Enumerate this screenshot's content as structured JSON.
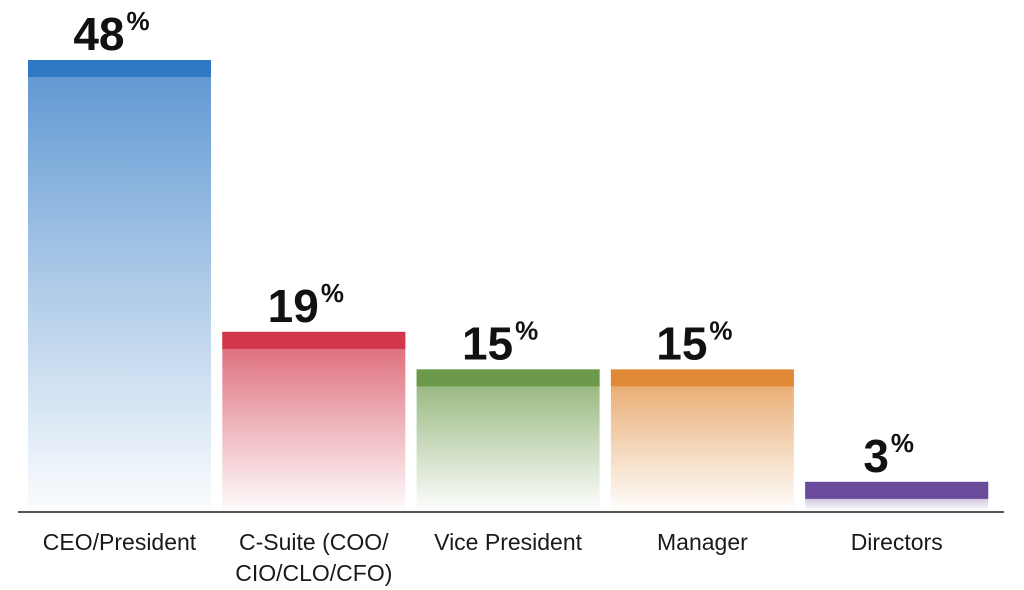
{
  "chart_data": {
    "type": "bar",
    "categories": [
      [
        "CEO/President"
      ],
      [
        "C-Suite (COO/",
        "CIO/CLO/CFO)"
      ],
      [
        "Vice President"
      ],
      [
        "Manager"
      ],
      [
        "Directors"
      ]
    ],
    "values": [
      48,
      19,
      15,
      15,
      3
    ],
    "value_suffix": "%",
    "colors": [
      "#2e78c4",
      "#d1364a",
      "#6d9a4a",
      "#e08a38",
      "#6a4a9a"
    ],
    "ylim": [
      0,
      48
    ],
    "grid": false,
    "legend": "none"
  }
}
